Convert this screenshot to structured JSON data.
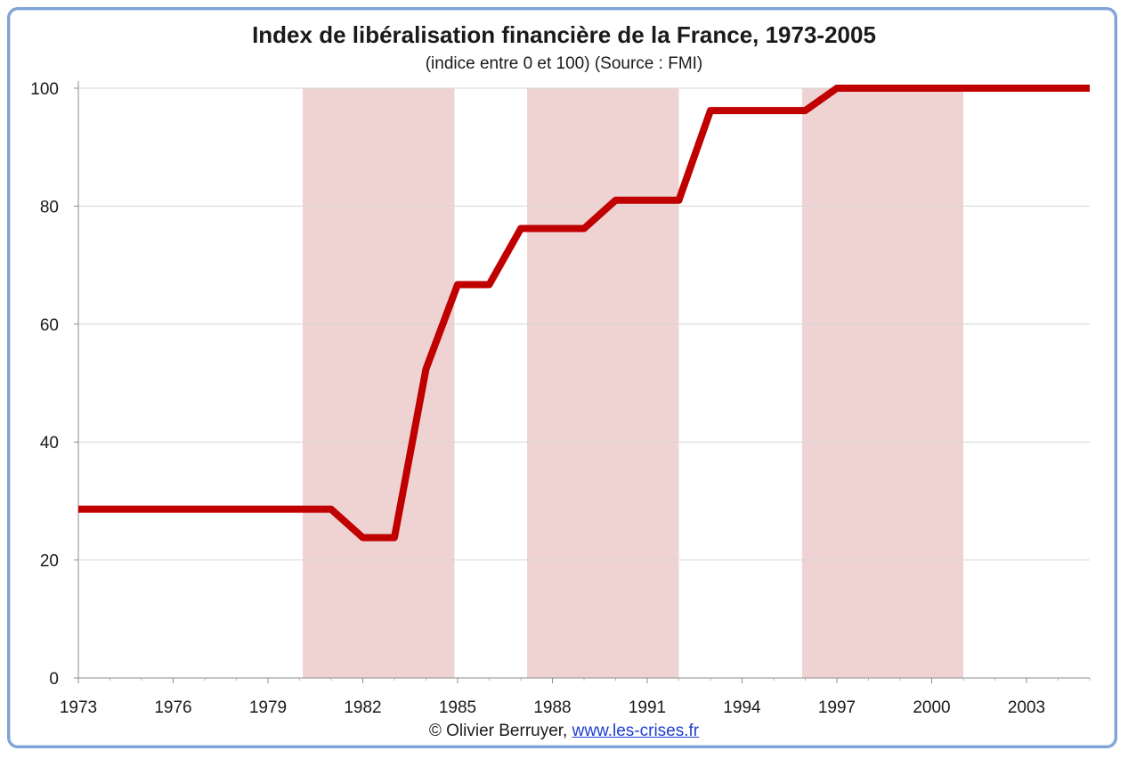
{
  "chart_data": {
    "type": "line",
    "title": "Index de libéralisation financière de la France, 1973-2005",
    "subtitle": "(indice entre 0 et 100) (Source : FMI)",
    "xlabel": "",
    "ylabel": "",
    "xlim": [
      1973,
      2005
    ],
    "ylim": [
      0,
      100
    ],
    "x_ticks": [
      1973,
      1976,
      1979,
      1982,
      1985,
      1988,
      1991,
      1994,
      1997,
      2000,
      2003
    ],
    "y_ticks": [
      0,
      20,
      40,
      60,
      80,
      100
    ],
    "grid": "horizontal",
    "legend": "none",
    "shaded_periods": [
      {
        "start": 1980.1,
        "end": 1984.9
      },
      {
        "start": 1987.2,
        "end": 1992.0
      },
      {
        "start": 1995.9,
        "end": 2001.0
      }
    ],
    "series": [
      {
        "x": [
          1973,
          1974,
          1975,
          1976,
          1977,
          1978,
          1979,
          1980,
          1981,
          1982,
          1983,
          1984,
          1985,
          1986,
          1987,
          1988,
          1989,
          1990,
          1991,
          1992,
          1993,
          1994,
          1995,
          1996,
          1997,
          1998,
          1999,
          2000,
          2001,
          2002,
          2003,
          2004,
          2005
        ],
        "y": [
          28.6,
          28.6,
          28.6,
          28.6,
          28.6,
          28.6,
          28.6,
          28.6,
          28.6,
          23.8,
          23.8,
          52.4,
          66.7,
          66.7,
          76.2,
          76.2,
          76.2,
          81.0,
          81.0,
          81.0,
          96.2,
          96.2,
          96.2,
          96.2,
          100,
          100,
          100,
          100,
          100,
          100,
          100,
          100,
          100
        ],
        "color": "#c00000"
      }
    ],
    "shade_color": "#efd3d3"
  },
  "footer": {
    "credit": "© Olivier Berruyer, ",
    "link": "www.les-crises.fr"
  }
}
